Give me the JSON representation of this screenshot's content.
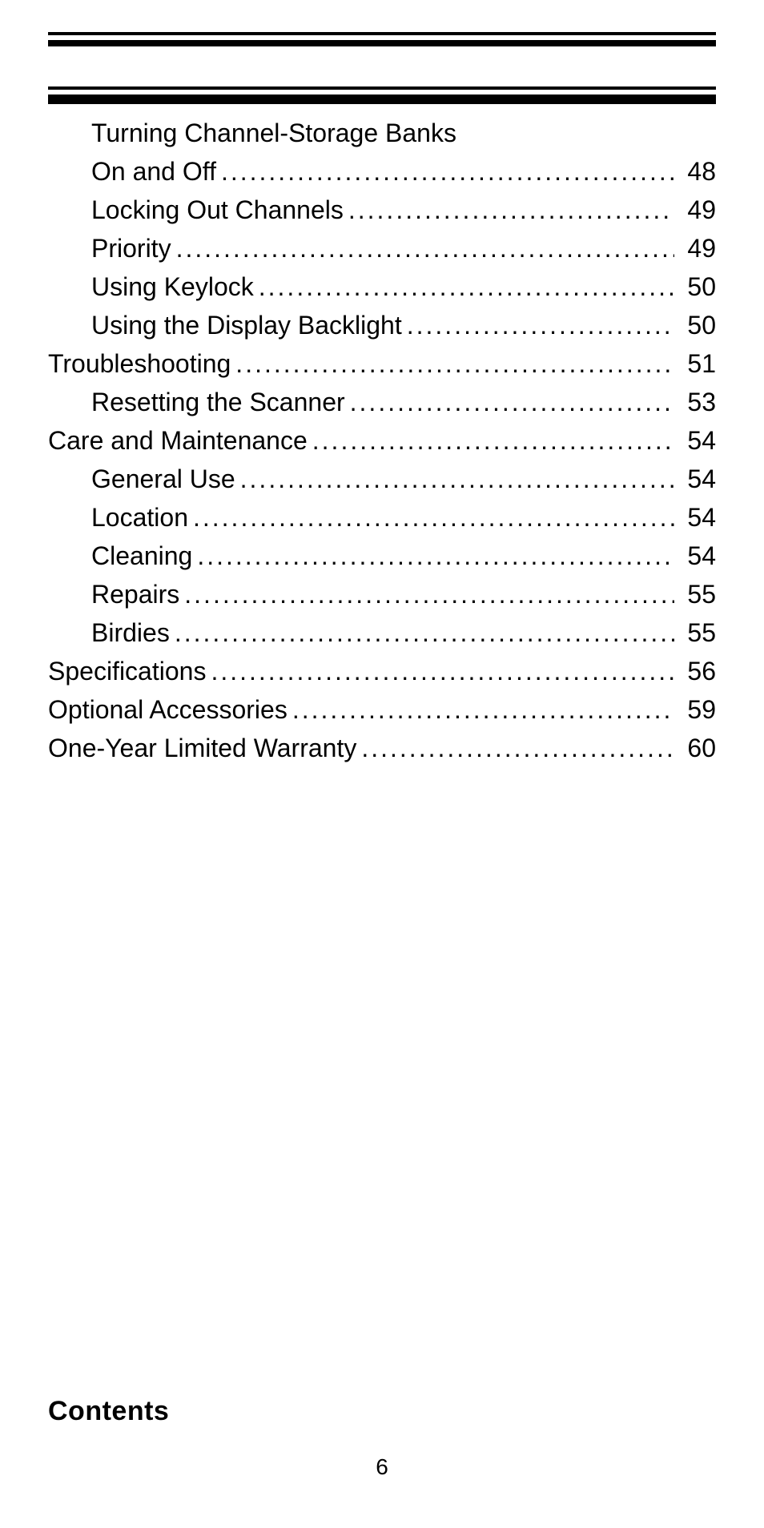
{
  "colors": {
    "text": "#000000",
    "background": "#ffffff",
    "rule": "#000000"
  },
  "typography": {
    "body_fontsize": 32,
    "footer_title_fontsize": 34,
    "pagenum_fontsize": 28,
    "font_family": "Arial"
  },
  "toc": {
    "entries": [
      {
        "level": 2,
        "label_wrap_first": "Turning Channel-Storage Banks",
        "label_wrap_second": "On and Off",
        "page": "48"
      },
      {
        "level": 2,
        "label": "Locking Out Channels",
        "page": "49"
      },
      {
        "level": 2,
        "label": "Priority",
        "page": "49"
      },
      {
        "level": 2,
        "label": "Using Keylock",
        "page": "50"
      },
      {
        "level": 2,
        "label": "Using the Display Backlight",
        "page": "50"
      },
      {
        "level": 1,
        "label": "Troubleshooting",
        "page": "51"
      },
      {
        "level": 2,
        "label": "Resetting the Scanner",
        "page": "53"
      },
      {
        "level": 1,
        "label": "Care and Maintenance",
        "page": "54"
      },
      {
        "level": 2,
        "label": "General Use",
        "page": "54"
      },
      {
        "level": 2,
        "label": "Location",
        "page": "54"
      },
      {
        "level": 2,
        "label": "Cleaning",
        "page": "54"
      },
      {
        "level": 2,
        "label": "Repairs",
        "page": "55"
      },
      {
        "level": 2,
        "label": "Birdies",
        "page": "55"
      },
      {
        "level": 1,
        "label": "Specifications",
        "page": "56"
      },
      {
        "level": 1,
        "label": "Optional Accessories",
        "page": "59"
      },
      {
        "level": 1,
        "label": "One-Year Limited Warranty",
        "page": "60"
      }
    ]
  },
  "footer": {
    "section_title": "Contents",
    "page_number": "6"
  }
}
